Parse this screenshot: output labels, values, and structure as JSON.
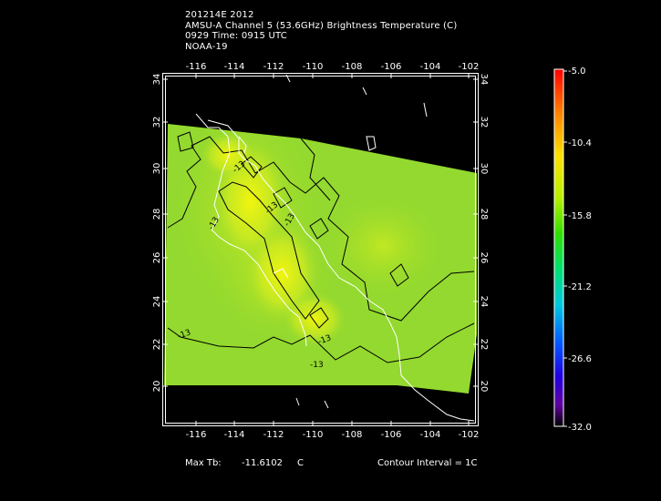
{
  "header": {
    "line1": "201214E 2012",
    "line2": "AMSU-A Channel 5 (53.6GHz) Brightness Temperature (C)",
    "line3": "0929 Time: 0915 UTC",
    "line4": "NOAA-19"
  },
  "map": {
    "lon_ticks": [
      "-116",
      "-114",
      "-112",
      "-110",
      "-108",
      "-106",
      "-104",
      "-102"
    ],
    "lat_ticks_left": [
      "20",
      "22",
      "24",
      "26",
      "28",
      "30",
      "32",
      "34"
    ],
    "lat_ticks_right": [
      "20",
      "22",
      "24",
      "26",
      "28",
      "30",
      "32",
      "34"
    ],
    "contour_labels": [
      "-13",
      "-13",
      "-13",
      "-13",
      "-13",
      "-13",
      "-13"
    ],
    "colors": {
      "field_base": "#8fd92e",
      "field_warm": "#e8f218",
      "field_hot": "#f2f50a",
      "coast": "#ffffff",
      "contour": "#000000"
    }
  },
  "colorbar": {
    "labels": [
      "-5.0",
      "-10.4",
      "-15.8",
      "-21.2",
      "-26.6",
      "-32.0"
    ]
  },
  "footer": {
    "max_tb_label": "Max Tb:",
    "max_tb_value": "-11.6102",
    "max_tb_unit": "C",
    "contour_interval": "Contour Interval = 1C"
  }
}
